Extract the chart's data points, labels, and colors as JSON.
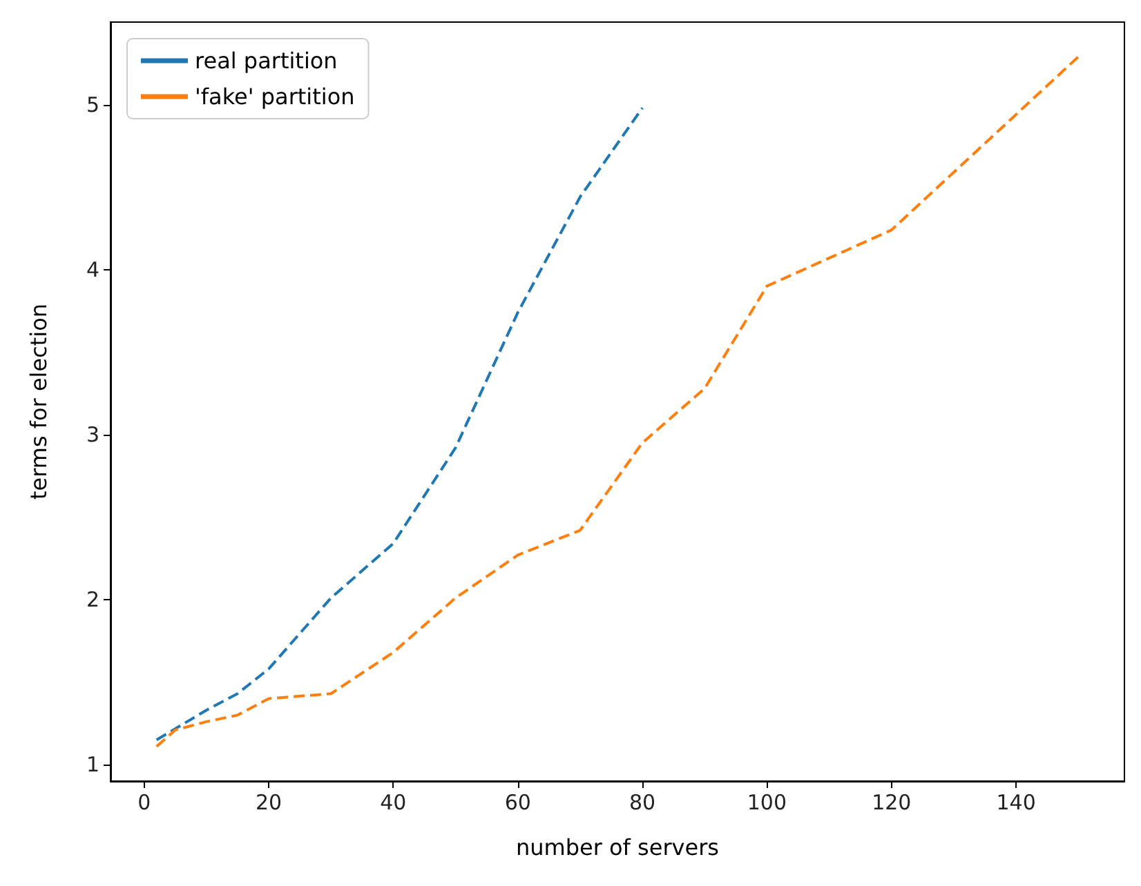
{
  "chart_data": {
    "type": "line",
    "xlabel": "number of servers",
    "ylabel": "terms for election",
    "xlim": [
      -5.4,
      157.4
    ],
    "ylim": [
      0.9,
      5.5
    ],
    "xticks": [
      0,
      20,
      40,
      60,
      80,
      100,
      120,
      140
    ],
    "yticks": [
      1,
      2,
      3,
      4,
      5
    ],
    "grid": false,
    "legend": "top left",
    "marker": "none",
    "line_style": "dashed",
    "series": [
      {
        "name": "real partition",
        "color": "#1f77b4",
        "x": [
          2,
          10,
          15,
          20,
          30,
          40,
          50,
          60,
          70,
          80
        ],
        "values": [
          1.15,
          1.33,
          1.43,
          1.58,
          2.01,
          2.34,
          2.92,
          3.74,
          4.44,
          4.98
        ]
      },
      {
        "name": "'fake' partition",
        "color": "#ff7f0e",
        "x": [
          2,
          5,
          10,
          15,
          20,
          30,
          40,
          50,
          60,
          70,
          80,
          90,
          100,
          120,
          150
        ],
        "values": [
          1.11,
          1.21,
          1.26,
          1.3,
          1.4,
          1.43,
          1.68,
          2.01,
          2.27,
          2.42,
          2.95,
          3.28,
          3.9,
          4.24,
          5.29
        ]
      }
    ]
  }
}
